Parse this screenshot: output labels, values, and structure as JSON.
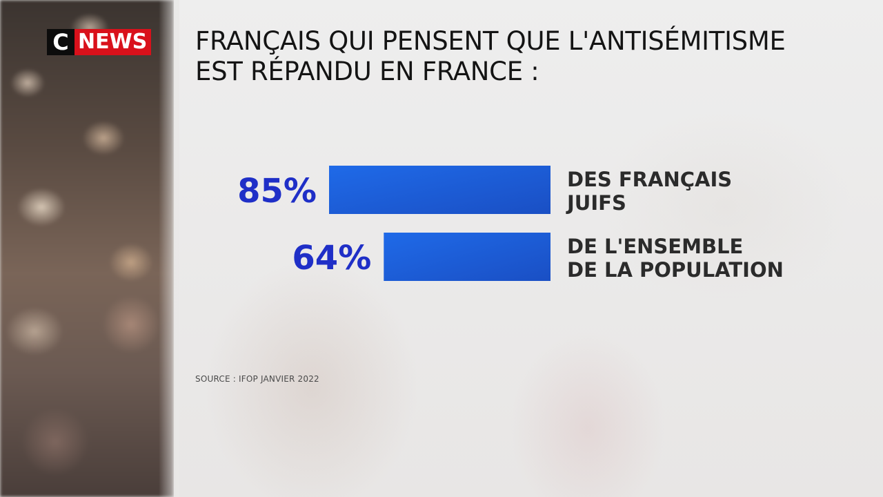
{
  "brand": {
    "logo_c": "C",
    "logo_news": "NEWS"
  },
  "title_lines": [
    "FRANÇAIS QUI PENSENT QUE L'ANTISÉMITISME",
    "EST RÉPANDU EN FRANCE :"
  ],
  "source": "SOURCE : IFOP JANVIER 2022",
  "colors": {
    "bar_start": "#1f6ae8",
    "bar_end": "#1a4fc4",
    "value_text": "#1f2fc7",
    "logo_red": "#d9111b"
  },
  "chart_data": {
    "type": "bar",
    "orientation": "horizontal",
    "unit": "%",
    "title": "FRANÇAIS QUI PENSENT QUE L'ANTISÉMITISME EST RÉPANDU EN FRANCE :",
    "categories": [
      [
        "DES FRANÇAIS",
        "JUIFS"
      ],
      [
        "DE L'ENSEMBLE",
        "DE LA POPULATION"
      ]
    ],
    "values": [
      85,
      64
    ],
    "value_labels": [
      "85%",
      "64%"
    ],
    "xlim": [
      0,
      100
    ],
    "grid": false,
    "legend": "none"
  }
}
